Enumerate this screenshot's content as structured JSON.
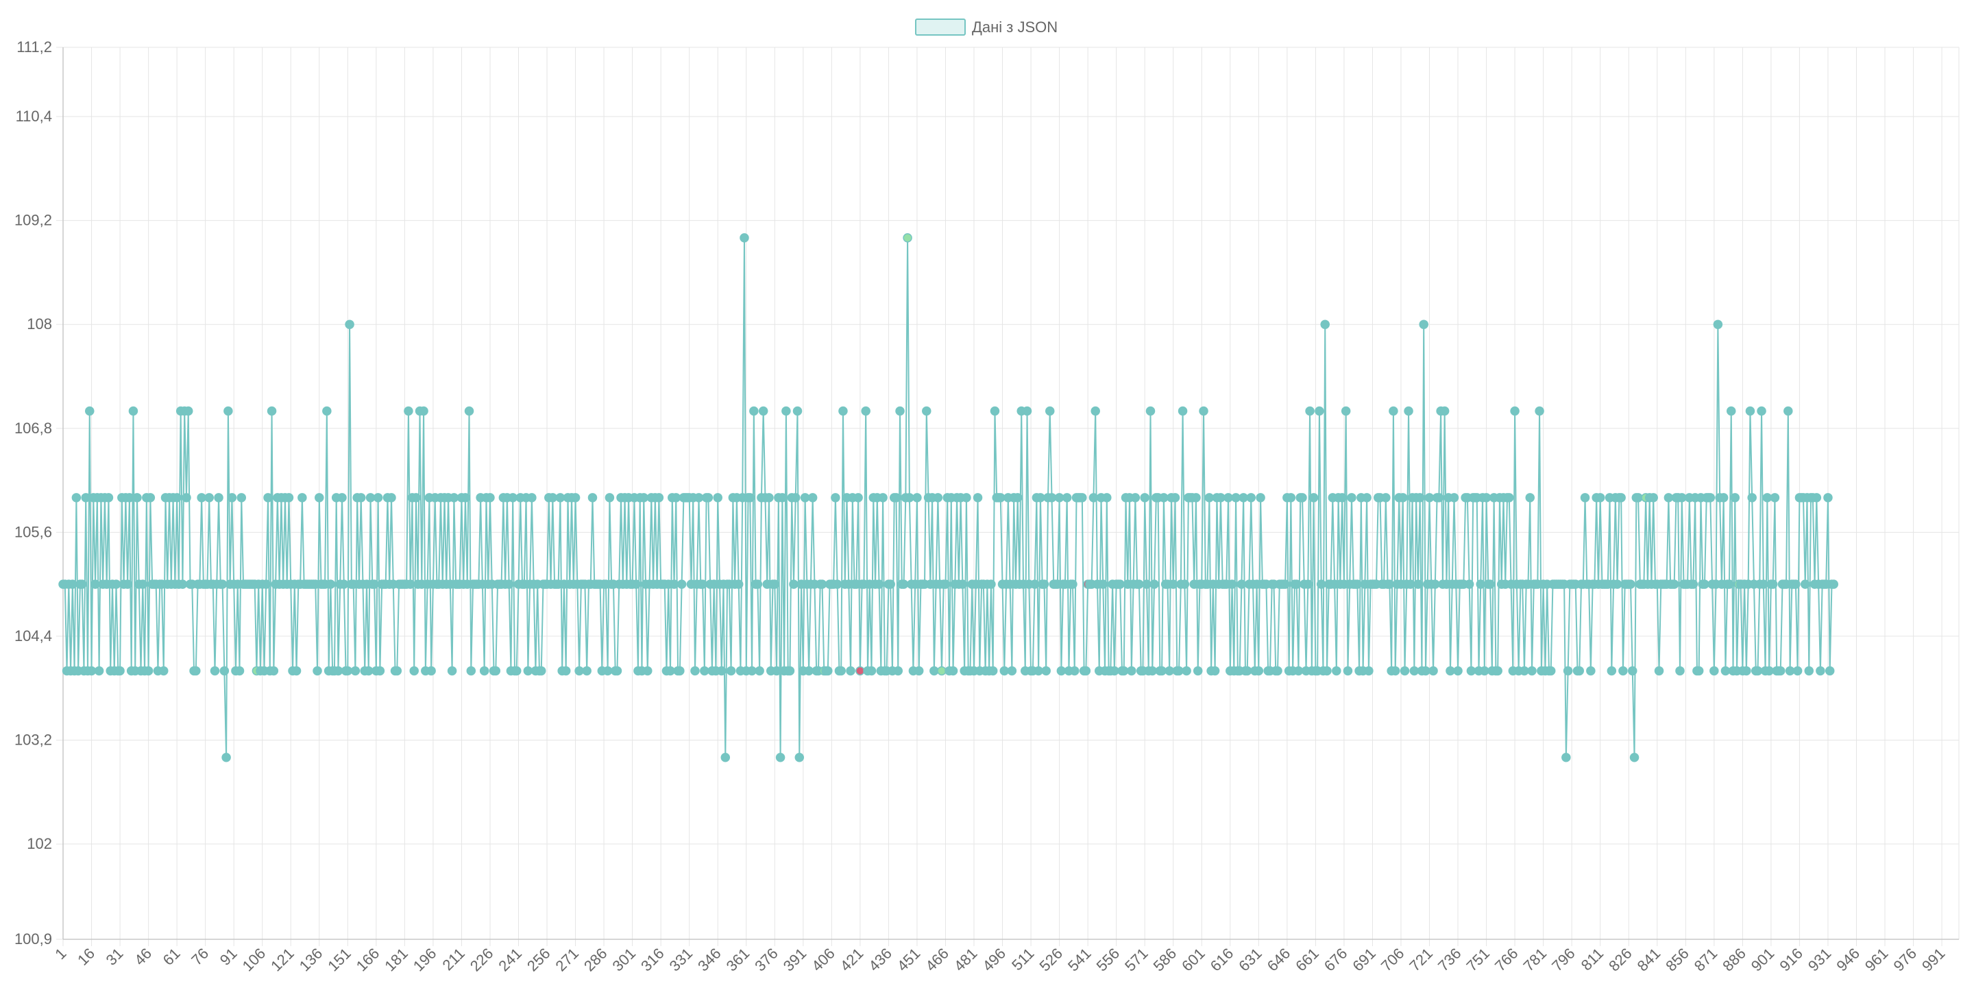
{
  "chart_data": {
    "type": "line",
    "legend": {
      "label": "Дані з JSON",
      "position": "top"
    },
    "colors": {
      "line": "#75c5c2",
      "point": "#75c5c2",
      "point_high": "#d9607a",
      "point_low": "#95e0a8",
      "legend_fill": "#e0f3f2",
      "grid": "#e5e5e5",
      "axis": "#c8c8c8"
    },
    "xlim": [
      1,
      1000
    ],
    "ylim": [
      100.9,
      111.2
    ],
    "y_ticks": [
      "100,9",
      "102",
      "103,2",
      "104,4",
      "105,6",
      "106,8",
      "108",
      "109,2",
      "110,4",
      "111,2"
    ],
    "y_tick_values": [
      100.9,
      102,
      103.2,
      104.4,
      105.6,
      106.8,
      108,
      109.2,
      110.4,
      111.2
    ],
    "x_ticks": [
      "1",
      "16",
      "31",
      "46",
      "61",
      "76",
      "91",
      "106",
      "121",
      "136",
      "151",
      "166",
      "181",
      "196",
      "211",
      "226",
      "241",
      "256",
      "271",
      "286",
      "301",
      "316",
      "331",
      "346",
      "361",
      "376",
      "391",
      "406",
      "421",
      "436",
      "451",
      "466",
      "481",
      "496",
      "511",
      "526",
      "541",
      "556",
      "571",
      "586",
      "601",
      "616",
      "631",
      "646",
      "661",
      "676",
      "691",
      "706",
      "721",
      "736",
      "751",
      "766",
      "781",
      "796",
      "811",
      "826",
      "841",
      "856",
      "871",
      "886",
      "901",
      "916",
      "931",
      "946",
      "961",
      "976",
      "991"
    ],
    "grid": true,
    "series": [
      {
        "name": "Дані з JSON",
        "values": [
          105,
          105,
          104,
          105,
          104,
          105,
          104,
          106,
          104,
          105,
          105,
          104,
          106,
          104,
          107,
          104,
          106,
          105,
          106,
          104,
          106,
          105,
          106,
          105,
          106,
          104,
          105,
          104,
          105,
          104,
          104,
          106,
          105,
          106,
          105,
          106,
          104,
          107,
          104,
          106,
          105,
          104,
          105,
          104,
          106,
          104,
          106,
          105,
          105,
          105,
          104,
          105,
          105,
          104,
          106,
          105,
          106,
          105,
          106,
          105,
          106,
          105,
          107,
          105,
          107,
          106,
          107,
          105,
          105,
          104,
          104,
          105,
          105,
          106,
          105,
          105,
          105,
          106,
          105,
          105,
          104,
          105,
          106,
          105,
          105,
          104,
          103,
          107,
          105,
          106,
          105,
          104,
          105,
          104,
          106,
          105,
          105,
          105,
          105,
          105,
          105,
          105,
          104,
          105,
          104,
          105,
          104,
          105,
          106,
          104,
          107,
          104,
          105,
          106,
          105,
          106,
          105,
          106,
          105,
          106,
          105,
          104,
          105,
          104,
          105,
          105,
          106,
          105,
          105,
          105,
          105,
          105,
          105,
          105,
          104,
          106,
          105,
          105,
          105,
          107,
          104,
          105,
          104,
          104,
          106,
          104,
          105,
          106,
          105,
          104,
          104,
          108,
          105,
          105,
          104,
          106,
          105,
          106,
          105,
          104,
          105,
          104,
          106,
          105,
          105,
          104,
          106,
          104,
          105,
          105,
          105,
          106,
          105,
          106,
          105,
          104,
          104,
          105,
          105,
          105,
          105,
          105,
          107,
          105,
          106,
          104,
          106,
          105,
          107,
          105,
          107,
          104,
          105,
          106,
          104,
          105,
          106,
          105,
          105,
          106,
          105,
          106,
          105,
          106,
          105,
          104,
          106,
          105,
          105,
          105,
          106,
          105,
          106,
          105,
          107,
          104,
          105,
          105,
          105,
          105,
          106,
          105,
          104,
          106,
          105,
          106,
          105,
          104,
          104,
          105,
          105,
          105,
          106,
          105,
          106,
          105,
          104,
          106,
          104,
          104,
          105,
          106,
          105,
          105,
          106,
          104,
          105,
          106,
          105,
          104,
          105,
          104,
          104,
          105,
          105,
          105,
          106,
          105,
          106,
          105,
          105,
          105,
          106,
          104,
          105,
          104,
          106,
          105,
          106,
          105,
          106,
          105,
          104,
          105,
          105,
          105,
          104,
          105,
          105,
          106,
          105,
          105,
          105,
          105,
          104,
          105,
          105,
          104,
          106,
          105,
          105,
          104,
          104,
          105,
          106,
          105,
          106,
          105,
          106,
          105,
          105,
          106,
          105,
          104,
          106,
          104,
          106,
          105,
          104,
          105,
          106,
          105,
          106,
          105,
          106,
          105,
          105,
          105,
          104,
          105,
          104,
          106,
          105,
          106,
          104,
          104,
          105,
          106,
          106,
          106,
          106,
          105,
          106,
          104,
          105,
          106,
          105,
          105,
          104,
          106,
          106,
          105,
          104,
          105,
          104,
          106,
          105,
          104,
          105,
          103,
          105,
          105,
          104,
          106,
          105,
          106,
          105,
          104,
          106,
          109,
          104,
          106,
          106,
          104,
          107,
          105,
          105,
          104,
          106,
          107,
          106,
          105,
          106,
          104,
          105,
          105,
          104,
          106,
          103,
          106,
          104,
          107,
          104,
          104,
          106,
          105,
          106,
          107,
          103,
          105,
          104,
          106,
          105,
          104,
          105,
          106,
          105,
          104,
          104,
          105,
          105,
          104,
          104,
          104,
          105,
          105,
          105,
          106,
          105,
          104,
          104,
          107,
          105,
          106,
          105,
          104,
          106,
          105,
          105,
          106,
          104,
          105,
          105,
          107,
          104,
          105,
          104,
          106,
          105,
          106,
          105,
          104,
          106,
          104,
          104,
          105,
          105,
          104,
          106,
          106,
          104,
          107,
          105,
          105,
          106,
          109,
          106,
          105,
          104,
          105,
          106,
          104,
          105,
          105,
          105,
          107,
          106,
          105,
          106,
          104,
          105,
          106,
          105,
          104,
          105,
          105,
          106,
          104,
          106,
          104,
          105,
          106,
          105,
          106,
          105,
          104,
          106,
          104,
          104,
          105,
          104,
          105,
          106,
          104,
          105,
          105,
          104,
          105,
          104,
          105,
          104,
          107,
          106,
          106,
          106,
          105,
          104,
          105,
          106,
          105,
          104,
          106,
          105,
          106,
          105,
          107,
          105,
          104,
          107,
          105,
          104,
          104,
          105,
          106,
          104,
          106,
          105,
          105,
          104,
          106,
          107,
          106,
          105,
          105,
          105,
          106,
          104,
          105,
          105,
          106,
          104,
          105,
          105,
          104,
          106,
          106,
          106,
          106,
          104,
          104,
          105,
          105,
          105,
          106,
          107,
          105,
          104,
          106,
          105,
          104,
          106,
          104,
          104,
          105,
          104,
          105,
          105,
          105,
          104,
          104,
          106,
          105,
          106,
          104,
          105,
          106,
          105,
          105,
          104,
          104,
          106,
          105,
          104,
          107,
          104,
          105,
          106,
          106,
          104,
          104,
          106,
          105,
          105,
          104,
          106,
          105,
          106,
          104,
          104,
          105,
          107,
          105,
          104,
          106,
          106,
          106,
          105,
          106,
          104,
          105,
          105,
          107,
          105,
          105,
          106,
          104,
          105,
          104,
          106,
          105,
          106,
          105,
          105,
          105,
          106,
          104,
          105,
          104,
          106,
          104,
          104,
          105,
          106,
          104,
          104,
          105,
          106,
          105,
          104,
          105,
          104,
          106,
          105,
          105,
          105,
          104,
          104,
          105,
          105,
          104,
          104,
          105,
          105,
          105,
          105,
          106,
          104,
          106,
          104,
          105,
          105,
          104,
          106,
          106,
          105,
          104,
          105,
          107,
          104,
          106,
          104,
          104,
          107,
          105,
          104,
          108,
          104,
          105,
          105,
          106,
          105,
          104,
          106,
          105,
          106,
          105,
          107,
          104,
          105,
          106,
          105,
          105,
          105,
          104,
          106,
          104,
          105,
          106,
          104,
          105,
          105,
          105,
          105,
          106,
          106,
          105,
          105,
          106,
          105,
          105,
          104,
          107,
          104,
          105,
          106,
          105,
          106,
          104,
          105,
          107,
          105,
          106,
          104,
          106,
          105,
          106,
          104,
          108,
          104,
          105,
          106,
          105,
          104,
          105,
          106,
          106,
          107,
          105,
          107,
          105,
          106,
          104,
          105,
          106,
          105,
          104,
          105,
          105,
          105,
          106,
          106,
          105,
          104,
          106,
          106,
          106,
          104,
          105,
          106,
          104,
          106,
          105,
          105,
          104,
          106,
          104,
          104,
          106,
          105,
          106,
          105,
          106,
          106,
          105,
          104,
          107,
          105,
          104,
          105,
          105,
          104,
          105,
          105,
          106,
          104,
          105,
          105,
          105,
          107,
          104,
          105,
          104,
          105,
          104,
          104,
          105,
          105,
          105,
          105,
          105,
          105,
          105,
          103,
          104,
          105,
          105,
          105,
          105,
          104,
          104,
          105,
          105,
          106,
          105,
          105,
          104,
          105,
          105,
          106,
          105,
          106,
          105,
          105,
          105,
          105,
          106,
          104,
          105,
          106,
          105,
          106,
          106,
          104,
          105,
          105,
          105,
          105,
          104,
          103,
          106,
          106,
          105,
          105,
          105,
          106,
          105,
          106,
          105,
          106,
          105,
          105,
          104,
          105,
          105,
          105,
          105,
          106,
          105,
          105,
          105,
          106,
          106,
          104,
          106,
          105,
          105,
          105,
          106,
          105,
          105,
          106,
          104,
          104,
          106,
          105,
          105,
          106,
          106,
          106,
          105,
          104,
          105,
          108,
          106,
          105,
          106,
          104,
          105,
          105,
          107,
          104,
          106,
          104,
          105,
          105,
          104,
          105,
          104,
          105,
          107,
          106,
          105,
          104,
          104,
          105,
          107,
          105,
          104,
          106,
          104,
          105,
          105,
          106,
          104,
          104,
          104,
          105,
          105,
          105,
          107,
          104,
          105,
          105,
          105,
          104,
          106,
          106,
          106,
          105,
          106,
          104,
          106,
          106,
          105,
          106,
          105,
          104,
          105,
          105,
          105,
          106,
          104,
          105,
          105
        ]
      }
    ],
    "high_points": [
      421,
      541
    ],
    "low_points": [
      103,
      402,
      446,
      464,
      835,
      884
    ]
  }
}
